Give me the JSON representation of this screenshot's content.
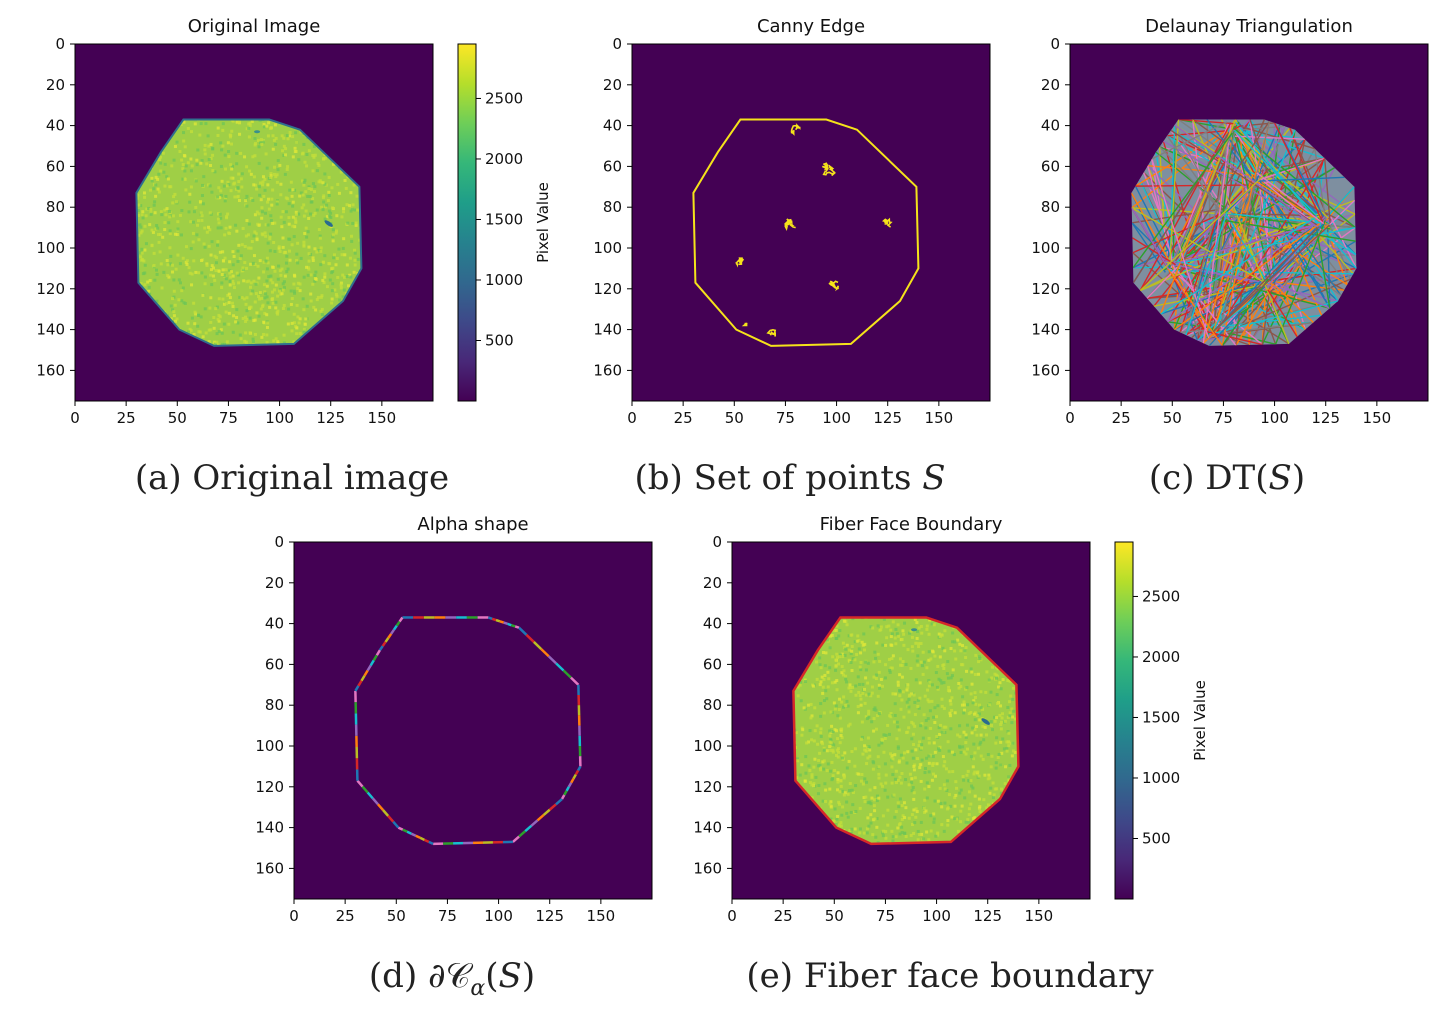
{
  "captions": {
    "a": "(a) Original image",
    "b_prefix": "(b) Set of points ",
    "b_var": "S",
    "c_prefix": "(c) DT(",
    "c_var": "S",
    "c_suffix": ")",
    "d_prefix": "(d) ∂𝒞",
    "d_sub": "α",
    "d_mid": "(",
    "d_var": "S",
    "d_suffix": ")",
    "e": "(e) Fiber face boundary"
  },
  "colors": {
    "background": "#440154",
    "edge": "#f5e31a",
    "boundary": "#d62728",
    "disk_fill": "#9fcf46"
  },
  "chart_data": [
    {
      "type": "heatmap",
      "title": "Original Image",
      "x_ticks": [
        0,
        25,
        50,
        75,
        100,
        125,
        150
      ],
      "y_ticks": [
        0,
        20,
        40,
        60,
        80,
        100,
        120,
        140,
        160
      ],
      "xlim": [
        0,
        175
      ],
      "ylim": [
        175,
        0
      ],
      "colorbar": {
        "label": "Pixel Value",
        "ticks": [
          500,
          1000,
          1500,
          2000,
          2500
        ],
        "range": [
          0,
          2950
        ]
      },
      "octagon": [
        [
          53,
          37
        ],
        [
          95,
          37
        ],
        [
          110,
          42
        ],
        [
          139,
          70
        ],
        [
          140,
          110
        ],
        [
          131,
          126
        ],
        [
          107,
          147
        ],
        [
          68,
          148
        ],
        [
          51,
          140
        ],
        [
          31,
          117
        ],
        [
          30,
          73
        ],
        [
          42,
          53
        ]
      ]
    },
    {
      "type": "heatmap",
      "title": "Canny Edge",
      "x_ticks": [
        0,
        25,
        50,
        75,
        100,
        125,
        150
      ],
      "y_ticks": [
        0,
        20,
        40,
        60,
        80,
        100,
        120,
        140,
        160
      ],
      "xlim": [
        0,
        175
      ],
      "ylim": [
        175,
        0
      ]
    },
    {
      "type": "heatmap",
      "title": "Delaunay Triangulation",
      "x_ticks": [
        0,
        25,
        50,
        75,
        100,
        125,
        150
      ],
      "y_ticks": [
        0,
        20,
        40,
        60,
        80,
        100,
        120,
        140,
        160
      ],
      "xlim": [
        0,
        175
      ],
      "ylim": [
        175,
        0
      ]
    },
    {
      "type": "heatmap",
      "title": "Alpha shape",
      "x_ticks": [
        0,
        25,
        50,
        75,
        100,
        125,
        150
      ],
      "y_ticks": [
        0,
        20,
        40,
        60,
        80,
        100,
        120,
        140,
        160
      ],
      "xlim": [
        0,
        175
      ],
      "ylim": [
        175,
        0
      ]
    },
    {
      "type": "heatmap",
      "title": "Fiber Face Boundary",
      "x_ticks": [
        0,
        25,
        50,
        75,
        100,
        125,
        150
      ],
      "y_ticks": [
        0,
        20,
        40,
        60,
        80,
        100,
        120,
        140,
        160
      ],
      "xlim": [
        0,
        175
      ],
      "ylim": [
        175,
        0
      ],
      "colorbar": {
        "label": "Pixel Value",
        "ticks": [
          500,
          1000,
          1500,
          2000,
          2500
        ],
        "range": [
          0,
          2950
        ]
      }
    }
  ]
}
